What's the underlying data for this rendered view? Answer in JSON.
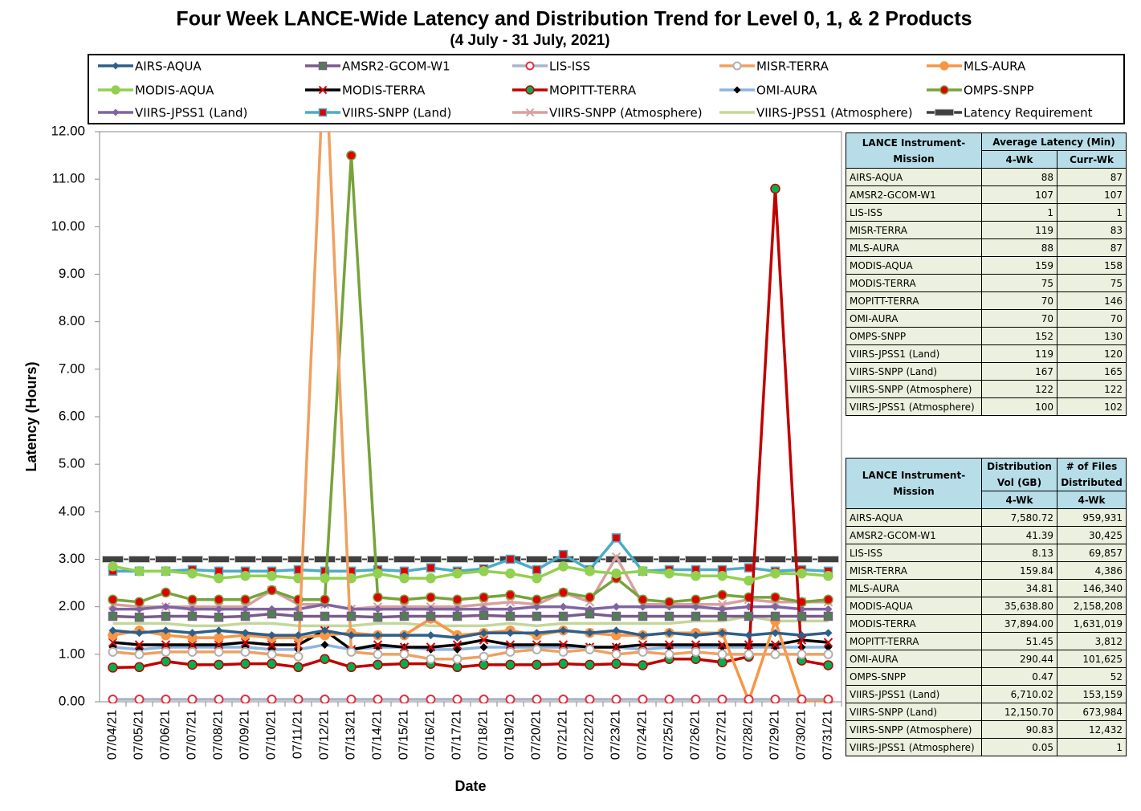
{
  "chart_data": {
    "type": "line",
    "title": "Four Week LANCE-Wide Latency and Distribution Trend for Level 0, 1, & 2 Products",
    "subtitle": "(4  July   -  31  July,  2021)",
    "x_label": "Date",
    "y_label": "Latency (Hours)",
    "categories": [
      "07/04/21",
      "07/05/21",
      "07/06/21",
      "07/07/21",
      "07/08/21",
      "07/09/21",
      "07/10/21",
      "07/11/21",
      "07/12/21",
      "07/13/21",
      "07/14/21",
      "07/15/21",
      "07/16/21",
      "07/17/21",
      "07/18/21",
      "07/19/21",
      "07/20/21",
      "07/21/21",
      "07/22/21",
      "07/23/21",
      "07/24/21",
      "07/25/21",
      "07/26/21",
      "07/27/21",
      "07/28/21",
      "07/29/21",
      "07/30/21",
      "07/31/21"
    ],
    "ylim": [
      0,
      12
    ],
    "yticks": [
      {
        "value": 0,
        "label": "0.00"
      },
      {
        "value": 1,
        "label": "1.00"
      },
      {
        "value": 2,
        "label": "2.00"
      },
      {
        "value": 3,
        "label": "3.00"
      },
      {
        "value": 4,
        "label": "4.00"
      },
      {
        "value": 5,
        "label": "5.00"
      },
      {
        "value": 6,
        "label": "6.00"
      },
      {
        "value": 7,
        "label": "7.00"
      },
      {
        "value": 8,
        "label": "8.00"
      },
      {
        "value": 9,
        "label": "9.00"
      },
      {
        "value": 10,
        "label": "10.00"
      },
      {
        "value": 11,
        "label": "11.00"
      },
      {
        "value": 12,
        "label": "12.00"
      }
    ],
    "series": [
      {
        "name": "AIRS-AQUA",
        "color": "#2e5f8a",
        "marker": "diamond",
        "marker_color": "#2e5f8a",
        "values": [
          1.5,
          1.45,
          1.5,
          1.45,
          1.5,
          1.45,
          1.4,
          1.4,
          1.5,
          1.4,
          1.4,
          1.4,
          1.4,
          1.35,
          1.45,
          1.45,
          1.45,
          1.5,
          1.45,
          1.5,
          1.4,
          1.45,
          1.4,
          1.45,
          1.4,
          1.45,
          1.4,
          1.45
        ]
      },
      {
        "name": "AMSR2-GCOM-W1",
        "color": "#7a5a8a",
        "marker": "square",
        "marker_color": "#4e8050",
        "values": [
          1.8,
          1.78,
          1.8,
          1.8,
          1.78,
          1.8,
          1.85,
          1.8,
          1.8,
          1.8,
          1.78,
          1.8,
          1.8,
          1.8,
          1.82,
          1.8,
          1.8,
          1.8,
          1.85,
          1.8,
          1.8,
          1.8,
          1.8,
          1.8,
          1.8,
          1.8,
          1.8,
          1.8
        ]
      },
      {
        "name": "LIS-ISS",
        "color": "#aab4c8",
        "marker": "ring",
        "marker_color": "#e03040",
        "values": [
          0.05,
          0.05,
          0.05,
          0.05,
          0.05,
          0.05,
          0.05,
          0.05,
          0.05,
          0.05,
          0.05,
          0.05,
          0.05,
          0.05,
          0.05,
          0.05,
          0.05,
          0.05,
          0.05,
          0.05,
          0.05,
          0.05,
          0.05,
          0.05,
          0.05,
          0.05,
          0.05,
          0.05
        ]
      },
      {
        "name": "MISR-TERRA",
        "color": "#f0a060",
        "marker": "ring",
        "marker_color": "#b0b0b0",
        "values": [
          1.05,
          1.0,
          1.05,
          1.05,
          1.05,
          1.05,
          1.0,
          0.95,
          14,
          1.05,
          1.0,
          1.0,
          0.9,
          0.9,
          0.95,
          1.05,
          1.1,
          1.05,
          1.1,
          1.0,
          1.05,
          1.0,
          1.05,
          1.0,
          1.0,
          1.0,
          1.0,
          1.0
        ]
      },
      {
        "name": "MLS-AURA",
        "color": "#f79646",
        "marker": "circle",
        "marker_color": "#f79646",
        "values": [
          1.4,
          1.5,
          1.4,
          1.35,
          1.35,
          1.4,
          1.35,
          1.35,
          1.4,
          1.45,
          1.4,
          1.4,
          1.75,
          1.4,
          1.45,
          1.5,
          1.4,
          1.5,
          1.45,
          1.4,
          1.4,
          1.45,
          1.45,
          1.45,
          0.02,
          1.7,
          0.02,
          0.02
        ]
      },
      {
        "name": "MODIS-AQUA",
        "color": "#92d050",
        "marker": "circle",
        "marker_color": "#92d050",
        "values": [
          2.85,
          2.75,
          2.75,
          2.7,
          2.6,
          2.65,
          2.65,
          2.6,
          2.6,
          2.6,
          2.7,
          2.6,
          2.6,
          2.7,
          2.75,
          2.7,
          2.6,
          2.85,
          2.75,
          2.7,
          2.75,
          2.7,
          2.65,
          2.65,
          2.55,
          2.7,
          2.7,
          2.65
        ]
      },
      {
        "name": "MODIS-TERRA",
        "color": "#000000",
        "marker": "x",
        "marker_color": "#e00000",
        "values": [
          1.25,
          1.2,
          1.2,
          1.2,
          1.2,
          1.25,
          1.2,
          1.2,
          1.5,
          1.1,
          1.2,
          1.15,
          1.15,
          1.2,
          1.3,
          1.2,
          1.2,
          1.2,
          1.15,
          1.15,
          1.2,
          1.2,
          1.2,
          1.2,
          1.2,
          1.2,
          1.3,
          1.25
        ]
      },
      {
        "name": "MOPITT-TERRA",
        "color": "#c00000",
        "marker": "circle",
        "marker_color": "#00b050",
        "values": [
          0.72,
          0.73,
          0.85,
          0.78,
          0.78,
          0.8,
          0.8,
          0.73,
          0.9,
          0.73,
          0.78,
          0.8,
          0.8,
          0.73,
          0.78,
          0.78,
          0.78,
          0.8,
          0.78,
          0.8,
          0.77,
          0.9,
          0.9,
          0.83,
          0.95,
          10.8,
          0.87,
          0.77
        ]
      },
      {
        "name": "OMI-AURA",
        "color": "#8db4e2",
        "marker": "diamond",
        "marker_color": "#000000",
        "values": [
          1.15,
          1.1,
          1.15,
          1.15,
          1.15,
          1.15,
          1.1,
          1.1,
          1.2,
          1.1,
          1.15,
          1.15,
          1.1,
          1.1,
          1.15,
          1.15,
          1.15,
          1.15,
          1.15,
          1.15,
          1.1,
          1.15,
          1.15,
          1.15,
          1.15,
          1.15,
          1.15,
          1.15
        ]
      },
      {
        "name": "OMPS-SNPP",
        "color": "#77a33b",
        "marker": "circle",
        "marker_color": "#e00000",
        "values": [
          2.15,
          2.1,
          2.3,
          2.15,
          2.15,
          2.15,
          2.35,
          2.15,
          2.15,
          11.5,
          2.2,
          2.15,
          2.2,
          2.15,
          2.2,
          2.25,
          2.15,
          2.3,
          2.2,
          2.6,
          2.15,
          2.1,
          2.15,
          2.25,
          2.2,
          2.2,
          2.1,
          2.15
        ]
      },
      {
        "name": "VIIRS-JPSS1 (Land)",
        "color": "#8064a2",
        "marker": "diamond",
        "marker_color": "#8064a2",
        "values": [
          1.95,
          1.95,
          2.0,
          1.95,
          1.95,
          1.95,
          1.95,
          1.95,
          2.05,
          1.95,
          1.95,
          1.95,
          1.95,
          1.95,
          1.95,
          1.95,
          2.0,
          2.0,
          1.95,
          2.0,
          2.0,
          2.0,
          2.0,
          1.95,
          2.0,
          2.0,
          1.95,
          1.95
        ]
      },
      {
        "name": "VIIRS-SNPP (Land)",
        "color": "#4bacc6",
        "marker": "square",
        "marker_color": "#e00000",
        "values": [
          2.75,
          2.75,
          2.75,
          2.78,
          2.75,
          2.75,
          2.75,
          2.78,
          2.75,
          2.75,
          2.78,
          2.75,
          2.82,
          2.75,
          2.8,
          3.0,
          2.78,
          3.1,
          2.78,
          3.45,
          2.75,
          2.78,
          2.78,
          2.78,
          2.82,
          2.75,
          2.78,
          2.75
        ]
      },
      {
        "name": "VIIRS-SNPP (Atmosphere)",
        "color": "#d8a0a0",
        "marker": "x",
        "marker_color": "#d8a0a0",
        "values": [
          2.05,
          2.0,
          2.0,
          2.0,
          2.0,
          2.0,
          2.35,
          2.05,
          2.05,
          1.95,
          2.0,
          2.0,
          2.0,
          2.0,
          2.05,
          2.1,
          2.05,
          2.3,
          2.1,
          3.05,
          2.05,
          2.05,
          2.05,
          2.05,
          2.15,
          2.1,
          2.1,
          2.1
        ]
      },
      {
        "name": "VIIRS-JPSS1 (Atmosphere)",
        "color": "#c4d79b",
        "marker": "none",
        "marker_color": "#c4d79b",
        "values": [
          1.65,
          1.65,
          1.65,
          1.6,
          1.6,
          1.65,
          1.65,
          1.6,
          1.6,
          1.6,
          1.65,
          1.65,
          1.6,
          1.6,
          1.6,
          1.65,
          1.6,
          1.65,
          1.65,
          1.65,
          1.65,
          1.65,
          1.7,
          1.7,
          1.8,
          1.7,
          1.7,
          1.7
        ]
      },
      {
        "name": "Latency Requirement",
        "color": "#404040",
        "marker": "bar",
        "marker_color": "#404040",
        "values": [
          3,
          3,
          3,
          3,
          3,
          3,
          3,
          3,
          3,
          3,
          3,
          3,
          3,
          3,
          3,
          3,
          3,
          3,
          3,
          3,
          3,
          3,
          3,
          3,
          3,
          3,
          3,
          3
        ]
      }
    ]
  },
  "latency_table": {
    "header": [
      "LANCE Instrument-Mission",
      "Average Latency (Min)"
    ],
    "subheader": [
      "4-Wk",
      "Curr-Wk"
    ],
    "rows": [
      [
        "AIRS-AQUA",
        "88",
        "87"
      ],
      [
        "AMSR2-GCOM-W1",
        "107",
        "107"
      ],
      [
        "LIS-ISS",
        "1",
        "1"
      ],
      [
        "MISR-TERRA",
        "119",
        "83"
      ],
      [
        "MLS-AURA",
        "88",
        "87"
      ],
      [
        "MODIS-AQUA",
        "159",
        "158"
      ],
      [
        "MODIS-TERRA",
        "75",
        "75"
      ],
      [
        "MOPITT-TERRA",
        "70",
        "146"
      ],
      [
        "OMI-AURA",
        "70",
        "70"
      ],
      [
        "OMPS-SNPP",
        "152",
        "130"
      ],
      [
        "VIIRS-JPSS1 (Land)",
        "119",
        "120"
      ],
      [
        "VIIRS-SNPP (Land)",
        "167",
        "165"
      ],
      [
        "VIIRS-SNPP (Atmosphere)",
        "122",
        "122"
      ],
      [
        "VIIRS-JPSS1 (Atmosphere)",
        "100",
        "102"
      ]
    ]
  },
  "distribution_table": {
    "header": [
      "LANCE Instrument-Mission",
      "Distribution Vol (GB)",
      "# of Files Distributed"
    ],
    "subheader": [
      "4-Wk",
      "4-Wk"
    ],
    "rows": [
      [
        "AIRS-AQUA",
        "7,580.72",
        "959,931"
      ],
      [
        "AMSR2-GCOM-W1",
        "41.39",
        "30,425"
      ],
      [
        "LIS-ISS",
        "8.13",
        "69,857"
      ],
      [
        "MISR-TERRA",
        "159.84",
        "4,386"
      ],
      [
        "MLS-AURA",
        "34.81",
        "146,340"
      ],
      [
        "MODIS-AQUA",
        "35,638.80",
        "2,158,208"
      ],
      [
        "MODIS-TERRA",
        "37,894.00",
        "1,631,019"
      ],
      [
        "MOPITT-TERRA",
        "51.45",
        "3,812"
      ],
      [
        "OMI-AURA",
        "290.44",
        "101,625"
      ],
      [
        "OMPS-SNPP",
        "0.47",
        "52"
      ],
      [
        "VIIRS-JPSS1 (Land)",
        "6,710.02",
        "153,159"
      ],
      [
        "VIIRS-SNPP (Land)",
        "12,150.70",
        "673,984"
      ],
      [
        "VIIRS-SNPP (Atmosphere)",
        "90.83",
        "12,432"
      ],
      [
        "VIIRS-JPSS1 (Atmosphere)",
        "0.05",
        "1"
      ]
    ]
  }
}
